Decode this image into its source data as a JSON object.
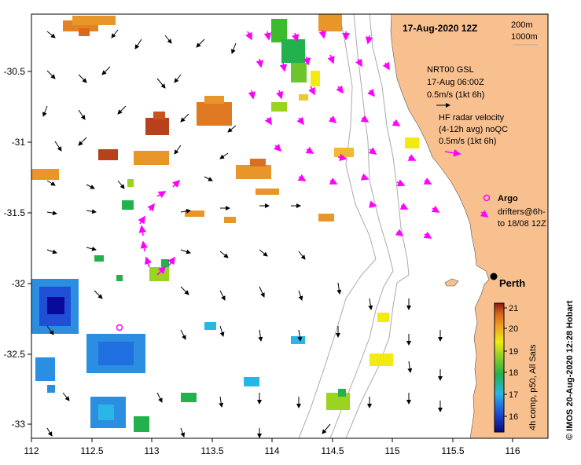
{
  "map": {
    "date_title": "17-Aug-2020 12Z",
    "depth_200": "200m",
    "depth_1000": "1000m",
    "city": "Perth",
    "credit": "© IMOS 20-Aug-2020 12:28 Hobart",
    "colorbar_label": "4h comp, p50, All Sats",
    "x_ticks": [
      "112",
      "112.5",
      "113",
      "113.5",
      "114",
      "114.5",
      "115",
      "115.5",
      "116"
    ],
    "y_ticks": [
      "-30.5",
      "-31",
      "-31.5",
      "-32",
      "-32.5",
      "-33"
    ],
    "colorbar_ticks": [
      "21",
      "20",
      "19",
      "18",
      "17",
      "16"
    ],
    "colors": {
      "land": "#f9c08f",
      "ocean": "#ffffff",
      "radar": "#ff00ff",
      "contour": "#aaaaaa",
      "warm": "#e48224",
      "cool": "#2b8ee0"
    }
  },
  "legend": {
    "gsl_title": "NRT00 GSL",
    "gsl_time": "17-Aug 06:00Z",
    "gsl_scale": "0.5m/s (1kt 6h)",
    "radar_title": "HF radar velocity",
    "radar_sub": "(4-12h avg) noQC",
    "radar_scale": "0.5m/s (1kt 6h)",
    "argo": "Argo",
    "drifters_1": "drifters@6h-",
    "drifters_2": "to 18/08 12Z"
  }
}
